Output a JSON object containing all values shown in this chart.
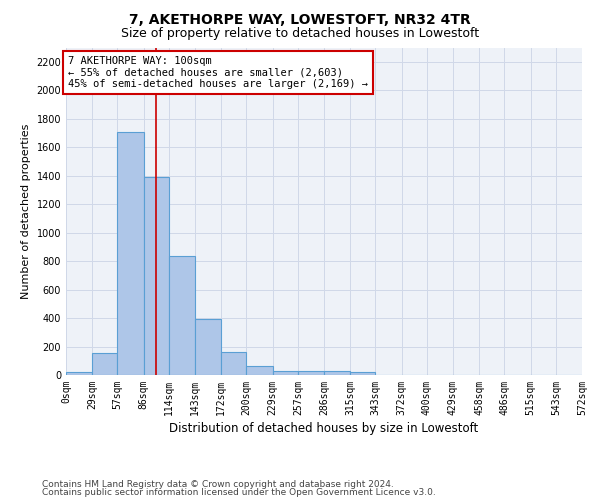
{
  "title": "7, AKETHORPE WAY, LOWESTOFT, NR32 4TR",
  "subtitle": "Size of property relative to detached houses in Lowestoft",
  "xlabel": "Distribution of detached houses by size in Lowestoft",
  "ylabel": "Number of detached properties",
  "bar_edges": [
    0,
    29,
    57,
    86,
    114,
    143,
    172,
    200,
    229,
    257,
    286,
    315,
    343,
    372,
    400,
    429,
    458,
    486,
    515,
    543,
    572
  ],
  "bar_heights": [
    20,
    155,
    1710,
    1390,
    835,
    390,
    165,
    65,
    30,
    28,
    25,
    22,
    0,
    0,
    0,
    0,
    0,
    0,
    0,
    0
  ],
  "bar_color": "#aec6e8",
  "bar_edgecolor": "#5a9fd4",
  "bar_linewidth": 0.8,
  "red_line_x": 100,
  "annotation_line1": "7 AKETHORPE WAY: 100sqm",
  "annotation_line2": "← 55% of detached houses are smaller (2,603)",
  "annotation_line3": "45% of semi-detached houses are larger (2,169) →",
  "annotation_box_color": "#ffffff",
  "annotation_box_edgecolor": "#cc0000",
  "ylim": [
    0,
    2300
  ],
  "yticks": [
    0,
    200,
    400,
    600,
    800,
    1000,
    1200,
    1400,
    1600,
    1800,
    2000,
    2200
  ],
  "tick_labels": [
    "0sqm",
    "29sqm",
    "57sqm",
    "86sqm",
    "114sqm",
    "143sqm",
    "172sqm",
    "200sqm",
    "229sqm",
    "257sqm",
    "286sqm",
    "315sqm",
    "343sqm",
    "372sqm",
    "400sqm",
    "429sqm",
    "458sqm",
    "486sqm",
    "515sqm",
    "543sqm",
    "572sqm"
  ],
  "grid_color": "#d0d8e8",
  "bg_color": "#eef2f8",
  "footnote1": "Contains HM Land Registry data © Crown copyright and database right 2024.",
  "footnote2": "Contains public sector information licensed under the Open Government Licence v3.0.",
  "title_fontsize": 10,
  "subtitle_fontsize": 9,
  "xlabel_fontsize": 8.5,
  "ylabel_fontsize": 8,
  "tick_fontsize": 7,
  "annotation_fontsize": 7.5,
  "footnote_fontsize": 6.5
}
